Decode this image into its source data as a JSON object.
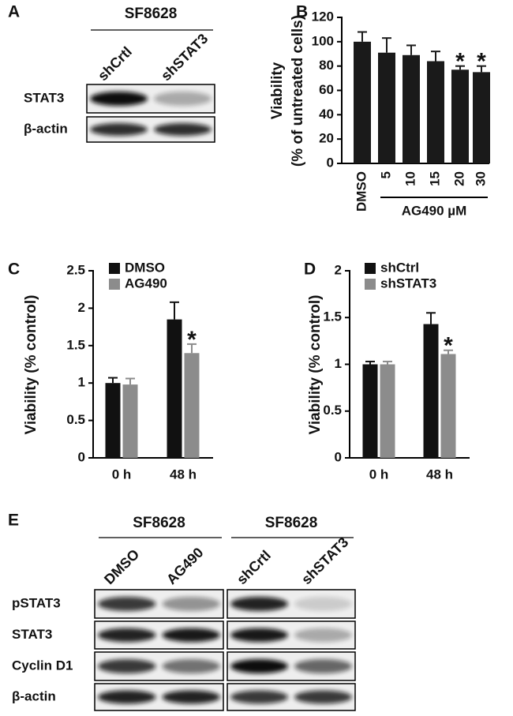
{
  "chart_data": [
    {
      "type": "bar",
      "panel": "B",
      "ylabel": [
        "Viability",
        "(% of untreated cells)"
      ],
      "xlabel": "AG490 µM",
      "categories": [
        "DMSO",
        "5",
        "10",
        "15",
        "20",
        "30"
      ],
      "series": [
        {
          "color": "#1a1a1a",
          "values": [
            100,
            91,
            89,
            84,
            77,
            75
          ],
          "errors": [
            8,
            12,
            8,
            8,
            3,
            5
          ]
        }
      ],
      "ylim": [
        0,
        120
      ],
      "yticks": [
        0,
        20,
        40,
        60,
        80,
        100,
        120
      ],
      "grid": false,
      "annotations": [
        {
          "text": "*",
          "x": "20"
        },
        {
          "text": "*",
          "x": "30"
        }
      ]
    },
    {
      "type": "bar",
      "panel": "C",
      "ylabel": [
        "Viability (% control)"
      ],
      "categories": [
        "0 h",
        "48 h"
      ],
      "series": [
        {
          "name": "DMSO",
          "color": "#111111",
          "values": [
            1.0,
            1.85
          ],
          "errors": [
            0.07,
            0.23
          ]
        },
        {
          "name": "AG490",
          "color": "#8c8c8c",
          "values": [
            0.98,
            1.4
          ],
          "errors": [
            0.08,
            0.12
          ]
        }
      ],
      "ylim": [
        0,
        2.5
      ],
      "yticks": [
        0,
        0.5,
        1,
        1.5,
        2,
        2.5
      ],
      "grid": false,
      "annotations": [
        {
          "text": "*",
          "x": "48 h",
          "series": "AG490"
        }
      ]
    },
    {
      "type": "bar",
      "panel": "D",
      "ylabel": [
        "Viability (% control)"
      ],
      "categories": [
        "0 h",
        "48 h"
      ],
      "series": [
        {
          "name": "shCtrl",
          "color": "#111111",
          "values": [
            1.0,
            1.43
          ],
          "errors": [
            0.03,
            0.12
          ]
        },
        {
          "name": "shSTAT3",
          "color": "#8c8c8c",
          "values": [
            1.0,
            1.11
          ],
          "errors": [
            0.03,
            0.04
          ]
        }
      ],
      "ylim": [
        0,
        2
      ],
      "yticks": [
        0,
        0.5,
        1,
        1.5,
        2
      ],
      "grid": false,
      "annotations": [
        {
          "text": "*",
          "x": "48 h",
          "series": "shSTAT3"
        }
      ]
    }
  ],
  "blots": {
    "A": {
      "panel": "A",
      "groups": [
        {
          "title": "SF8628",
          "lanes": [
            "shCrtl",
            "shSTAT3"
          ]
        }
      ],
      "rows": [
        "STAT3",
        "β-actin"
      ]
    },
    "E": {
      "panel": "E",
      "groups": [
        {
          "title": "SF8628",
          "lanes": [
            "DMSO",
            "AG490"
          ]
        },
        {
          "title": "SF8628",
          "lanes": [
            "shCrtl",
            "shSTAT3"
          ]
        }
      ],
      "rows": [
        "pSTAT3",
        "STAT3",
        "Cyclin D1",
        "β-actin"
      ]
    }
  }
}
